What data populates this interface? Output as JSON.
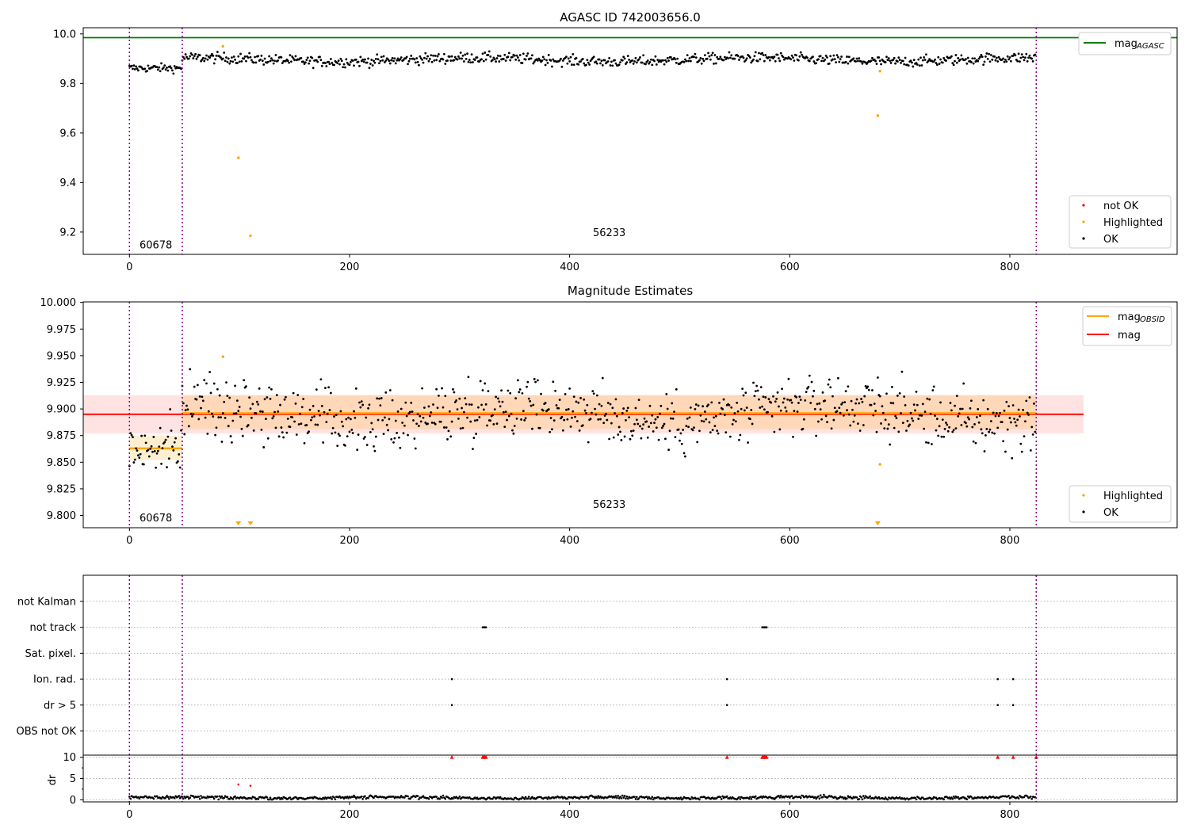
{
  "chart_data": [
    {
      "type": "scatter",
      "title": "AGASC ID 742003656.0",
      "xlim": [
        -42,
        952
      ],
      "ylim": [
        9.11,
        10.025
      ],
      "yticks": [
        9.2,
        9.4,
        9.6,
        9.8,
        10.0
      ],
      "ytick_labels": [
        "9.2",
        "9.4",
        "9.6",
        "9.8",
        "10.0"
      ],
      "xticks": [
        0,
        200,
        400,
        600,
        800
      ],
      "xtick_labels": [
        "0",
        "200",
        "400",
        "600",
        "800"
      ],
      "obsid_boundaries": [
        0,
        48,
        824
      ],
      "obsid_labels": [
        {
          "text": "60678",
          "x": 24,
          "y": 9.15
        },
        {
          "text": "56233",
          "x": 436,
          "y": 9.2
        }
      ],
      "mag_agasc": 9.985,
      "mag_agasc_color": "#008000",
      "legend_lines": [
        {
          "label": "mag",
          "sub": "AGASC",
          "color": "#008000"
        }
      ],
      "legend_markers": [
        {
          "label": "not OK",
          "color": "#ff0000"
        },
        {
          "label": "Highlighted",
          "color": "#ffa500"
        },
        {
          "label": "OK",
          "color": "#000000"
        }
      ],
      "highlighted_points": [
        [
          85,
          9.95
        ],
        [
          99,
          9.5
        ],
        [
          110,
          9.185
        ],
        [
          680,
          9.67
        ],
        [
          682,
          9.85
        ]
      ],
      "ok_series_summary": {
        "segments": [
          {
            "x": [
              0,
              48
            ],
            "mean": 9.862,
            "spread": 0.012
          },
          {
            "x": [
              48,
              824
            ],
            "mean": 9.896,
            "spread": 0.015
          }
        ],
        "n_points": 824
      }
    },
    {
      "type": "scatter",
      "title": "Magnitude Estimates",
      "xlim": [
        -42,
        952
      ],
      "ylim": [
        9.7885,
        10.0005
      ],
      "yticks": [
        9.8,
        9.825,
        9.85,
        9.875,
        9.9,
        9.925,
        9.95,
        9.975,
        10.0
      ],
      "ytick_labels": [
        "9.800",
        "9.825",
        "9.850",
        "9.875",
        "9.900",
        "9.925",
        "9.950",
        "9.975",
        "10.000"
      ],
      "xticks": [
        0,
        200,
        400,
        600,
        800
      ],
      "xtick_labels": [
        "0",
        "200",
        "400",
        "600",
        "800"
      ],
      "obsid_boundaries": [
        0,
        48,
        824
      ],
      "obsid_labels": [
        {
          "text": "60678",
          "x": 24,
          "y": 9.798
        },
        {
          "text": "56233",
          "x": 436,
          "y": 9.811
        }
      ],
      "mag": 9.895,
      "mag_band": [
        9.877,
        9.913
      ],
      "mag_x_extent": [
        -42,
        867
      ],
      "mag_obsid": [
        {
          "x": [
            0,
            48
          ],
          "value": 9.863,
          "band": [
            9.852,
            9.875
          ]
        },
        {
          "x": [
            48,
            824
          ],
          "value": 9.896,
          "band": [
            9.881,
            9.913
          ]
        }
      ],
      "legend_lines": [
        {
          "label": "mag",
          "sub": "OBSID",
          "color": "#ffa500"
        },
        {
          "label": "mag",
          "sub": "",
          "color": "#ff0000"
        }
      ],
      "legend_markers": [
        {
          "label": "Highlighted",
          "color": "#ffa500"
        },
        {
          "label": "OK",
          "color": "#000000"
        }
      ],
      "highlighted_points": [
        [
          85,
          9.949
        ],
        [
          682,
          9.848
        ]
      ],
      "offscale_below": [
        99,
        110,
        680
      ]
    },
    {
      "type": "scatter",
      "title": "",
      "xlim": [
        -42,
        952
      ],
      "xticks": [
        0,
        200,
        400,
        600,
        800
      ],
      "xtick_labels": [
        "0",
        "200",
        "400",
        "600",
        "800"
      ],
      "obsid_boundaries": [
        0,
        48,
        824
      ],
      "flag_rows": [
        "not Kalman",
        "not track",
        "Sat. pixel.",
        "Ion. rad.",
        "dr > 5",
        "OBS not OK"
      ],
      "flag_points": {
        "not Kalman": [],
        "not track": [
          321,
          322,
          323,
          324,
          575,
          576,
          577,
          578,
          579
        ],
        "Sat. pixel.": [],
        "Ion. rad.": [
          293,
          543,
          789,
          803
        ],
        "dr > 5": [
          293,
          543,
          789,
          803
        ],
        "OBS not OK": []
      },
      "dr_ylabel": "dr",
      "dr_ylim": [
        -0.5,
        10.5
      ],
      "dr_yticks": [
        0,
        5,
        10
      ],
      "dr_ytick_labels": [
        "0",
        "5",
        "10"
      ],
      "dr_capped": [
        293,
        321,
        322,
        323,
        324,
        543,
        575,
        576,
        577,
        578,
        579,
        789,
        803,
        824
      ],
      "dr_red_points": [
        [
          99,
          3.6
        ],
        [
          110,
          3.3
        ]
      ],
      "dr_typical": 0.5
    }
  ]
}
